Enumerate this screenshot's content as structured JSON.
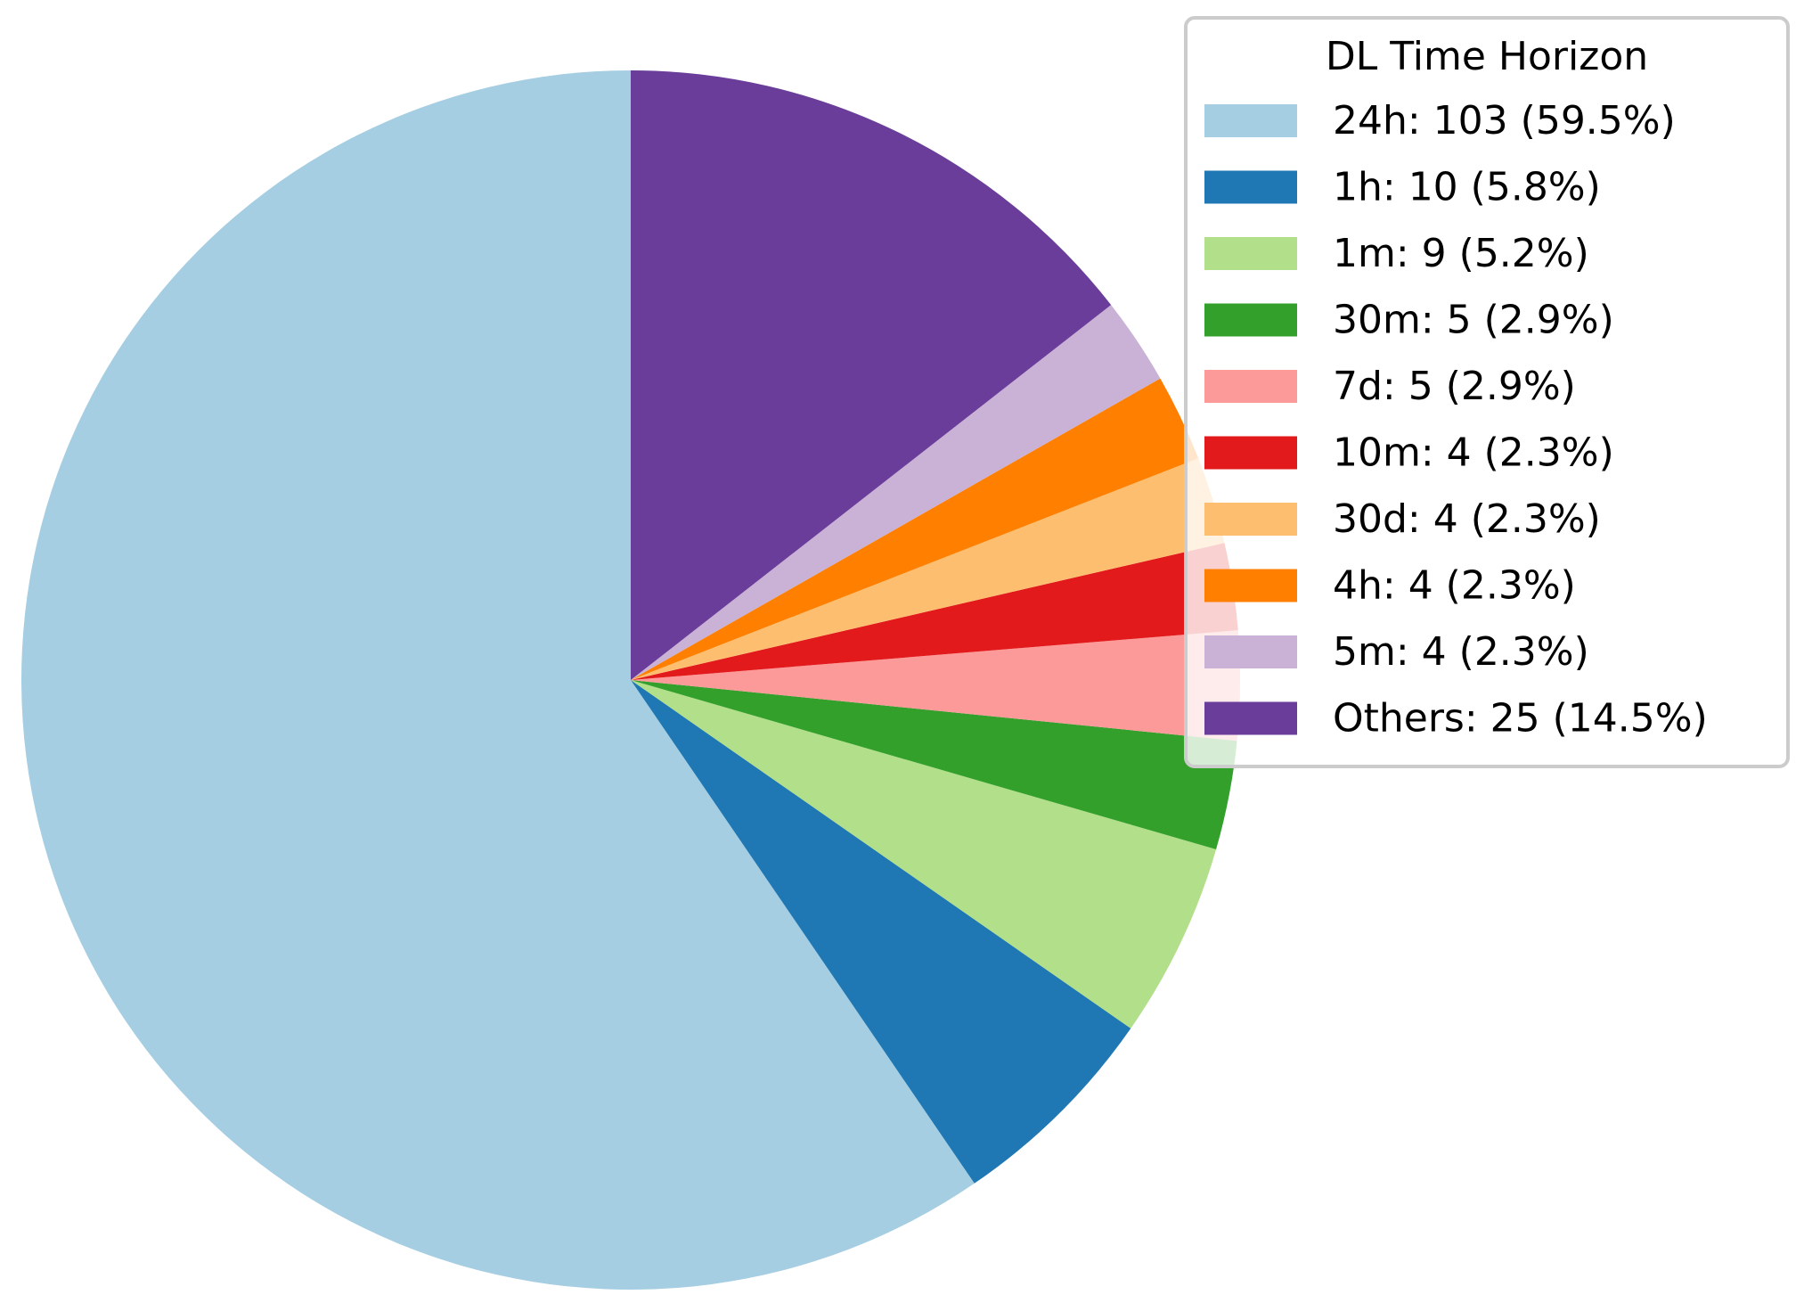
{
  "chart_data": {
    "type": "pie",
    "start_angle": 90,
    "direction": "counterclockwise",
    "legend": {
      "title": "DL Time Horizon",
      "placement": "top-right"
    },
    "slices": [
      {
        "label": "24h",
        "value": 103,
        "percent": 59.5,
        "legend": "24h: 103 (59.5%)",
        "color": "#a6cee3"
      },
      {
        "label": "1h",
        "value": 10,
        "percent": 5.8,
        "legend": "1h: 10 (5.8%)",
        "color": "#1f78b4"
      },
      {
        "label": "1m",
        "value": 9,
        "percent": 5.2,
        "legend": "1m: 9 (5.2%)",
        "color": "#b2df8a"
      },
      {
        "label": "30m",
        "value": 5,
        "percent": 2.9,
        "legend": "30m: 5 (2.9%)",
        "color": "#33a02c"
      },
      {
        "label": "7d",
        "value": 5,
        "percent": 2.9,
        "legend": "7d: 5 (2.9%)",
        "color": "#fb9a99"
      },
      {
        "label": "10m",
        "value": 4,
        "percent": 2.3,
        "legend": "10m: 4 (2.3%)",
        "color": "#e31a1c"
      },
      {
        "label": "30d",
        "value": 4,
        "percent": 2.3,
        "legend": "30d: 4 (2.3%)",
        "color": "#fdbf6f"
      },
      {
        "label": "4h",
        "value": 4,
        "percent": 2.3,
        "legend": "4h: 4 (2.3%)",
        "color": "#ff7f00"
      },
      {
        "label": "5m",
        "value": 4,
        "percent": 2.3,
        "legend": "5m: 4 (2.3%)",
        "color": "#cab2d6"
      },
      {
        "label": "Others",
        "value": 25,
        "percent": 14.5,
        "legend": "Others: 25 (14.5%)",
        "color": "#6a3d9a"
      }
    ]
  }
}
